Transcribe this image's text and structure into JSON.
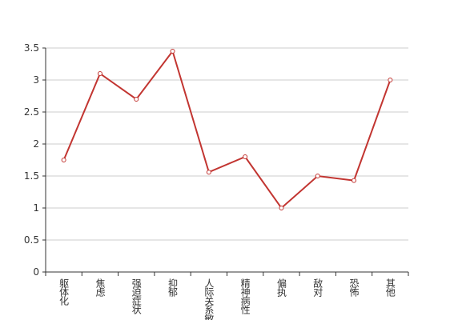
{
  "chart_data": {
    "type": "line",
    "categories": [
      "躯体化",
      "焦虑",
      "强迫症状",
      "抑郁",
      "人际关系敏感",
      "精神病性",
      "偏执",
      "敌对",
      "恐怖",
      "其他"
    ],
    "values": [
      1.75,
      3.1,
      2.7,
      3.45,
      1.56,
      1.8,
      1.0,
      1.5,
      1.43,
      3.0
    ],
    "color": "#c23531",
    "ylim": [
      0,
      3.5
    ],
    "yticks": [
      0,
      0.5,
      1,
      1.5,
      2,
      2.5,
      3,
      3.5
    ],
    "grid": true
  }
}
